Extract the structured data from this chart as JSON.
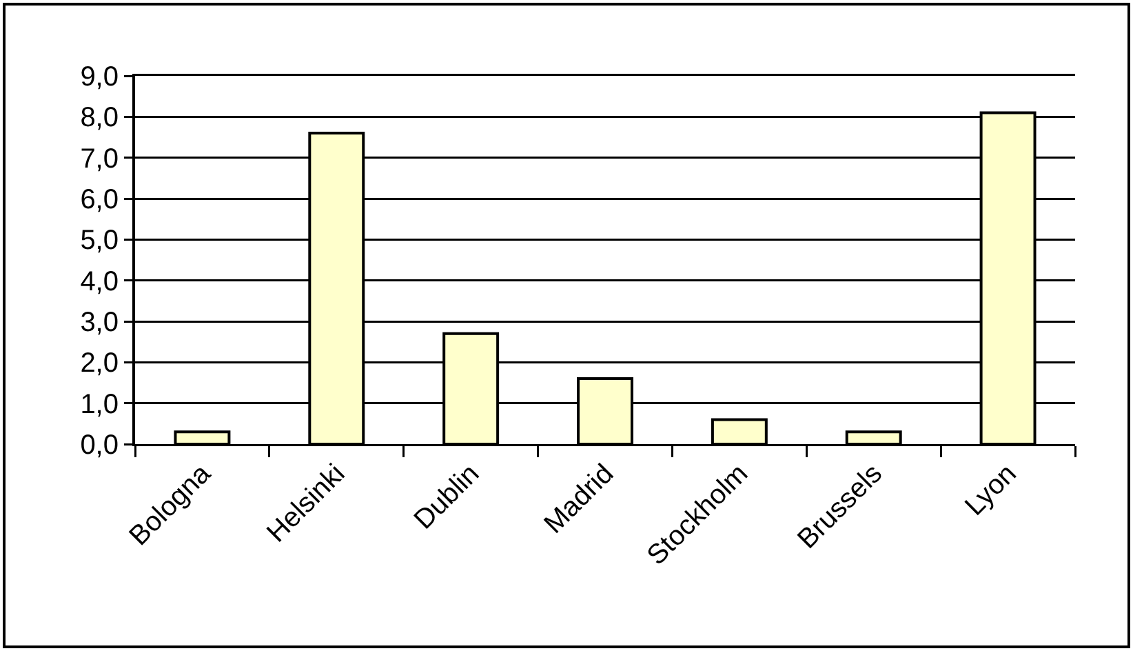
{
  "chart_data": {
    "type": "bar",
    "categories": [
      "Bologna",
      "Helsinki",
      "Dublin",
      "Madrid",
      "Stockholm",
      "Brussels",
      "Lyon"
    ],
    "values": [
      0.3,
      7.6,
      2.7,
      1.6,
      0.6,
      0.3,
      8.1
    ],
    "color": "#ffffcc",
    "ylim": [
      0,
      9
    ],
    "yticks": [
      {
        "value": 0,
        "label": "0,0"
      },
      {
        "value": 1,
        "label": "1,0"
      },
      {
        "value": 2,
        "label": "2,0"
      },
      {
        "value": 3,
        "label": "3,0"
      },
      {
        "value": 4,
        "label": "4,0"
      },
      {
        "value": 5,
        "label": "5,0"
      },
      {
        "value": 6,
        "label": "6,0"
      },
      {
        "value": 7,
        "label": "7,0"
      },
      {
        "value": 8,
        "label": "8,0"
      },
      {
        "value": 9,
        "label": "9,0"
      }
    ],
    "grid": "y"
  }
}
